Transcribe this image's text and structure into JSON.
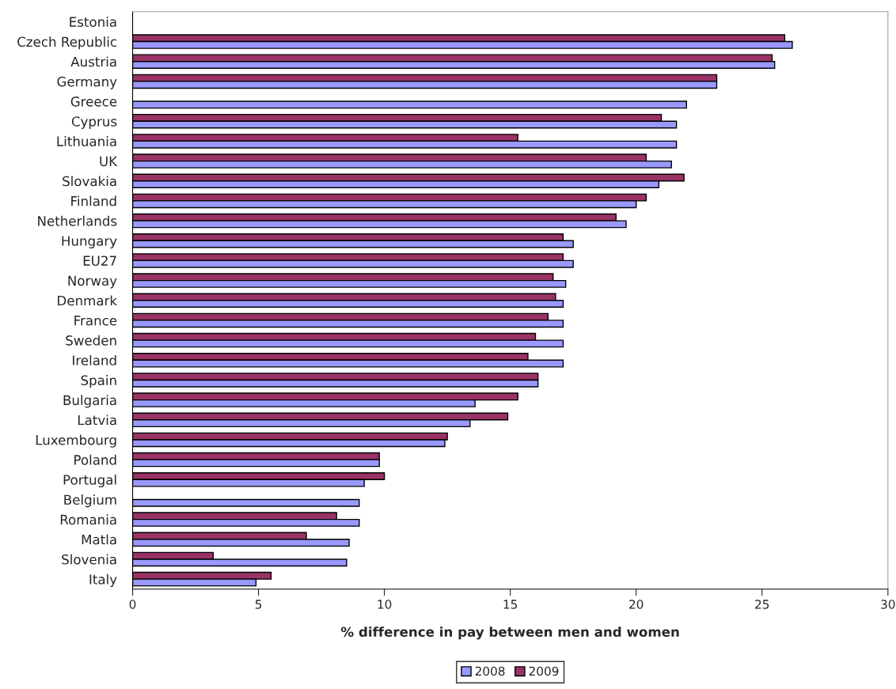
{
  "chart_data": {
    "type": "bar",
    "orientation": "horizontal",
    "xlabel": "% difference in pay between men and women",
    "categories": [
      "Estonia",
      "Czech Republic",
      "Austria",
      "Germany",
      "Greece",
      "Cyprus",
      "Lithuania",
      "UK",
      "Slovakia",
      "Finland",
      "Netherlands",
      "Hungary",
      "EU27",
      "Norway",
      "Denmark",
      "France",
      "Sweden",
      "Ireland",
      "Spain",
      "Bulgaria",
      "Latvia",
      "Luxembourg",
      "Poland",
      "Portugal",
      "Belgium",
      "Romania",
      "Matla",
      "Slovenia",
      "Italy"
    ],
    "series": [
      {
        "name": "2009",
        "color": "#993366",
        "values": [
          null,
          25.9,
          25.4,
          23.2,
          null,
          21.0,
          15.3,
          20.4,
          21.9,
          20.4,
          19.2,
          17.1,
          17.1,
          16.7,
          16.8,
          16.5,
          16.0,
          15.7,
          16.1,
          15.3,
          14.9,
          12.5,
          9.8,
          10.0,
          null,
          8.1,
          6.9,
          3.2,
          5.5
        ]
      },
      {
        "name": "2008",
        "color": "#9999ff",
        "values": [
          null,
          26.2,
          25.5,
          23.2,
          22.0,
          21.6,
          21.6,
          21.4,
          20.9,
          20.0,
          19.6,
          17.5,
          17.5,
          17.2,
          17.1,
          17.1,
          17.1,
          17.1,
          16.1,
          13.6,
          13.4,
          12.4,
          9.8,
          9.2,
          9.0,
          9.0,
          8.6,
          8.5,
          4.9
        ]
      }
    ],
    "xlim": [
      0,
      30
    ],
    "xticks": [
      0,
      5,
      10,
      15,
      20,
      25,
      30
    ],
    "grid": false,
    "legend": "bottom"
  }
}
